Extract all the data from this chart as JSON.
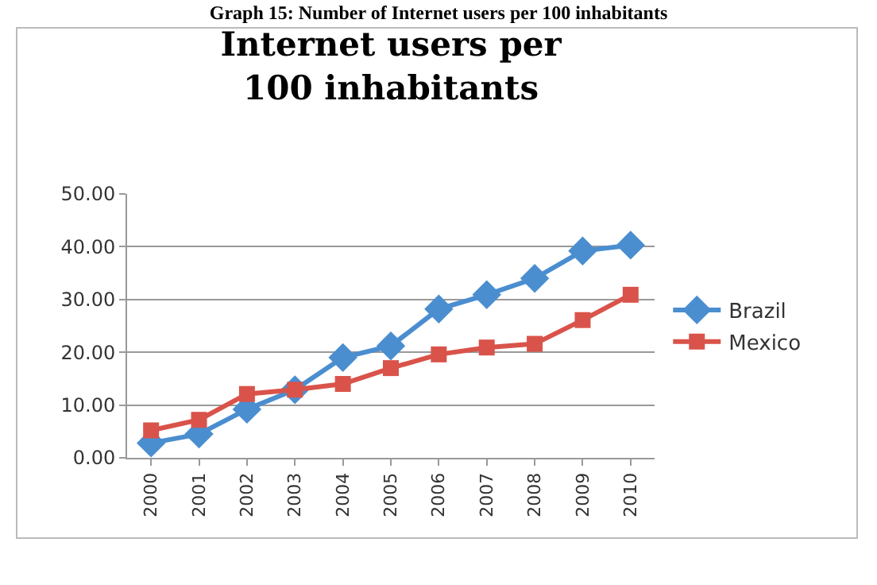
{
  "chart_data": {
    "type": "line",
    "title": "Internet users per 100 inhabitants",
    "annotations": [
      "Graph 15: Number of Internet users per 100 inhabitants"
    ],
    "categories": [
      "2000",
      "2001",
      "2002",
      "2003",
      "2004",
      "2005",
      "2006",
      "2007",
      "2008",
      "2009",
      "2010"
    ],
    "series": [
      {
        "name": "Brazil",
        "color": "#4a8ed0",
        "marker": "diamond",
        "values": [
          2.8,
          4.5,
          9.2,
          12.9,
          19.0,
          21.2,
          28.2,
          30.9,
          34.0,
          39.2,
          40.3
        ]
      },
      {
        "name": "Mexico",
        "color": "#d9534a",
        "marker": "square",
        "values": [
          5.2,
          7.2,
          12.1,
          12.9,
          14.0,
          17.0,
          19.6,
          20.9,
          21.6,
          26.1,
          30.9
        ]
      }
    ],
    "ylim": [
      0,
      50
    ],
    "yticks": [
      {
        "value": 0,
        "label": "0.00"
      },
      {
        "value": 10,
        "label": "10.00"
      },
      {
        "value": 20,
        "label": "20.00"
      },
      {
        "value": 30,
        "label": "30.00"
      },
      {
        "value": 40,
        "label": "40.00"
      },
      {
        "value": 50,
        "label": "50.00"
      }
    ],
    "grid": "y",
    "legend": "right",
    "line_style": "solid"
  }
}
